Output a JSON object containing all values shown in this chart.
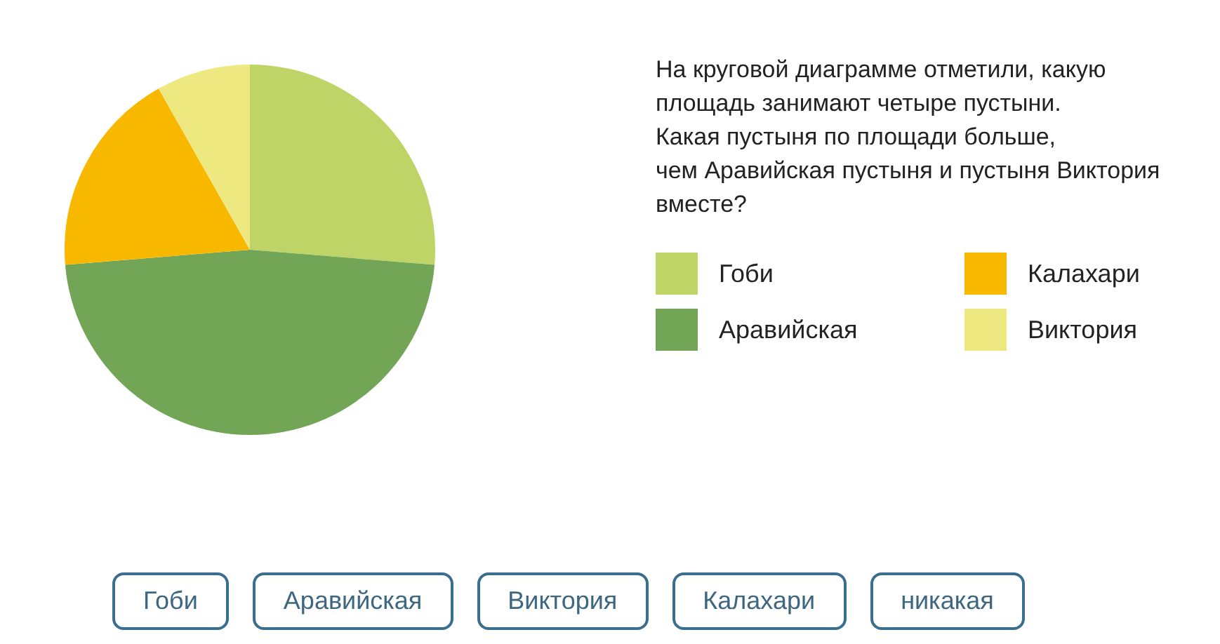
{
  "chart_data": {
    "type": "pie",
    "subtitle": "На круговой диаграмме отметили, какую\nплощадь занимают четыре пустыни.\nКакая пустыня по площади больше,\nчем Аравийская пустыня и пустыня Виктория\nвместе?",
    "categories": [
      "Гоби",
      "Аравийская",
      "Калахари",
      "Виктория"
    ],
    "values": [
      26.3,
      47.4,
      18.1,
      8.2
    ],
    "colors": [
      "#bfd466",
      "#72a555",
      "#f9b800",
      "#ede880"
    ],
    "legend": "right",
    "annotations": [
      "Гоби",
      "Аравийская",
      "Виктория",
      "Калахари",
      "никакая"
    ]
  }
}
